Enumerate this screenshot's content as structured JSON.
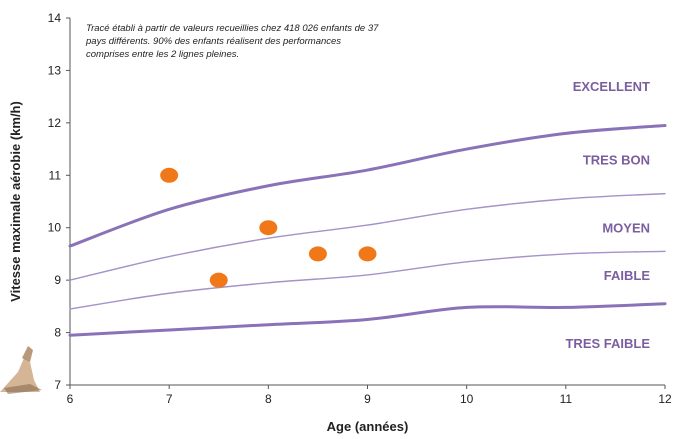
{
  "chart_data": {
    "type": "line",
    "xlabel": "Age (années)",
    "ylabel": "Vitesse maximale aérobie (km/h)",
    "xlim": [
      6,
      12
    ],
    "ylim": [
      7,
      14
    ],
    "x_ticks": [
      "6",
      "7",
      "8",
      "9",
      "10",
      "11",
      "12"
    ],
    "y_ticks": [
      "7",
      "8",
      "9",
      "10",
      "11",
      "12",
      "13",
      "14"
    ],
    "note_lines": [
      "Tracé établi à partir de valeurs recueillies chez 418 026 enfants de 37",
      "pays différents. 90% des enfants réalisent des performances",
      "comprises entre les 2 lignes pleines."
    ],
    "series": [
      {
        "role": "upper-solid",
        "color": "#8a72b8",
        "width": 3,
        "x": [
          6,
          7,
          8,
          9,
          10,
          11,
          12
        ],
        "y": [
          9.65,
          10.35,
          10.8,
          11.1,
          11.5,
          11.8,
          11.95
        ]
      },
      {
        "role": "thin",
        "color": "#a492c8",
        "width": 1.4,
        "x": [
          6,
          7,
          8,
          9,
          10,
          11,
          12
        ],
        "y": [
          9.0,
          9.45,
          9.8,
          10.05,
          10.35,
          10.55,
          10.65
        ]
      },
      {
        "role": "thin",
        "color": "#a492c8",
        "width": 1.4,
        "x": [
          6,
          7,
          8,
          9,
          10,
          11,
          12
        ],
        "y": [
          8.45,
          8.75,
          8.95,
          9.1,
          9.35,
          9.5,
          9.55
        ]
      },
      {
        "role": "lower-solid",
        "color": "#8a72b8",
        "width": 3,
        "x": [
          6,
          7,
          8,
          9,
          10,
          11,
          12
        ],
        "y": [
          7.95,
          8.05,
          8.15,
          8.25,
          8.48,
          8.48,
          8.55
        ]
      }
    ],
    "points": {
      "color": "#f07818",
      "x": [
        7,
        7.5,
        8,
        8.5,
        9
      ],
      "y": [
        11,
        9,
        10,
        9.5,
        9.5
      ]
    },
    "band_labels": [
      {
        "text": "EXCELLENT",
        "y": 12.7
      },
      {
        "text": "TRES BON",
        "y": 11.3
      },
      {
        "text": "MOYEN",
        "y": 10.0
      },
      {
        "text": "FAIBLE",
        "y": 9.1
      },
      {
        "text": "TRES FAIBLE",
        "y": 7.8
      }
    ]
  }
}
